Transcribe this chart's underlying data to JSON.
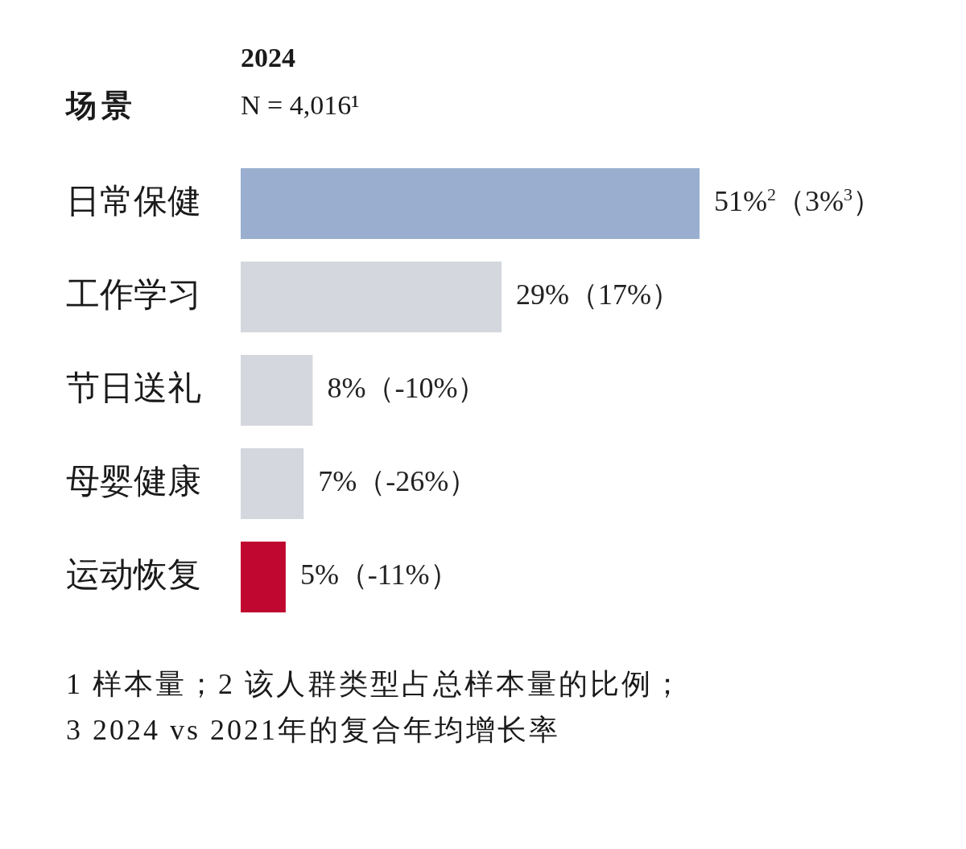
{
  "chart_data": {
    "type": "bar",
    "orientation": "horizontal",
    "title": "2024",
    "subtitle": "N = 4,016¹",
    "ylabel": "场景",
    "categories": [
      "日常保健",
      "工作学习",
      "节日送礼",
      "母婴健康",
      "运动恢复"
    ],
    "values": [
      51,
      29,
      8,
      7,
      5
    ],
    "colors": [
      "#9aafd0",
      "#d4d7dd",
      "#d4d7dd",
      "#d4d7dd",
      "#c0072f"
    ],
    "value_labels": [
      "51%$^{2}$（3%$^{3}$）",
      "29%（17%）",
      "8%（-10%）",
      "7%（-26%）",
      "5%（-11%）"
    ],
    "annotations": [
      "1 样本量；2 该人群类型占总样本量的比例；",
      "3 2024 vs 2021年的复合年均增长率"
    ]
  }
}
